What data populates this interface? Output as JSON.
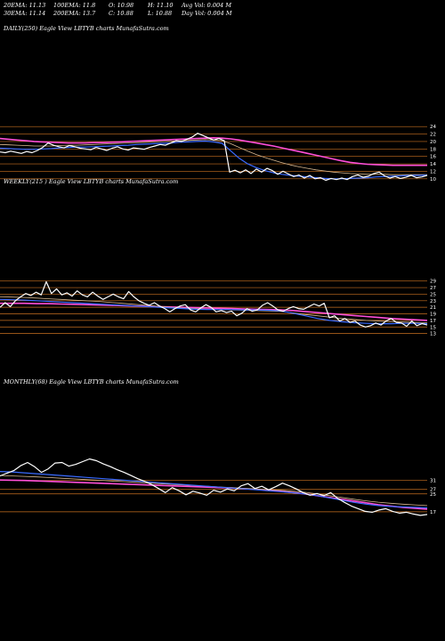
{
  "header": {
    "ema20": "20EMA: 11.13",
    "ema100": "100EMA: 11.8",
    "open": "O: 10.98",
    "high": "H: 11.10",
    "avg_vol": "Avg Vol: 0.004 M",
    "ema30": "30EMA: 11.14",
    "ema200": "200EMA: 13.7",
    "close": "C: 10.88",
    "low": "L: 10.88",
    "day_vol": "Day Vol: 0.004 M"
  },
  "panels": {
    "daily_title": "DAILY(250) Eagle View LBTYB charts MunafaSutra.com",
    "weekly_title": "WEEKLY(215                    ) Eagle View LBTYB charts MunafaSutra.com",
    "monthly_title": "MONTHLY(68) Eagle View LBTYB charts MunafaSutra.com"
  },
  "colors": {
    "price": "#ffffff",
    "ema_fast": "#3a6bff",
    "ema_slow": "#ff4fd8",
    "ema_mid": "#d8b890",
    "grid": "#c87020",
    "background": "#000000"
  },
  "chart_data": [
    {
      "type": "line",
      "title": "DAILY(250) Eagle View LBTYB charts MunafaSutra.com",
      "ylim": [
        9,
        25
      ],
      "ticks": [
        24,
        22,
        20,
        18,
        16,
        14,
        12,
        10
      ],
      "series": [
        {
          "role": "price",
          "values": [
            17.2,
            17.0,
            17.4,
            17.1,
            16.8,
            17.3,
            17.0,
            17.6,
            18.4,
            19.6,
            19.0,
            18.6,
            18.3,
            18.9,
            18.6,
            18.2,
            18.0,
            17.8,
            18.4,
            18.0,
            17.6,
            18.2,
            18.6,
            18.0,
            17.7,
            18.3,
            18.1,
            17.9,
            18.4,
            18.8,
            19.2,
            19.0,
            19.6,
            20.2,
            20.0,
            20.6,
            21.2,
            22.2,
            21.6,
            21.0,
            20.4,
            20.8,
            20.2,
            11.8,
            12.3,
            11.6,
            12.4,
            11.4,
            12.6,
            11.8,
            12.8,
            12.2,
            11.2,
            12.0,
            11.3,
            10.6,
            11.0,
            10.2,
            10.9,
            10.0,
            10.3,
            9.6,
            10.1,
            9.8,
            10.2,
            9.8,
            10.6,
            11.0,
            10.4,
            10.7,
            11.4,
            11.8,
            10.8,
            10.2,
            10.6,
            10.1,
            10.4,
            10.9,
            10.3,
            10.5,
            10.9
          ]
        },
        {
          "role": "ema_fast",
          "values": [
            18.2,
            18.1,
            18.0,
            17.9,
            17.9,
            18.0,
            18.1,
            18.3,
            18.4,
            18.5,
            18.5,
            18.6,
            18.7,
            18.8,
            18.9,
            19.0,
            19.2,
            19.3,
            19.4,
            19.5,
            19.6,
            19.8,
            19.9,
            20.0,
            20.1,
            19.9,
            19.5,
            17.5,
            15.5,
            14.0,
            13.0,
            12.2,
            11.6,
            11.2,
            10.9,
            10.7,
            10.5,
            10.3,
            10.1,
            10.0,
            10.0,
            10.1,
            10.2,
            10.3,
            10.5,
            10.6,
            10.7,
            10.8,
            10.9,
            10.9,
            11.0
          ]
        },
        {
          "role": "ema_mid",
          "values": [
            19.2,
            19.1,
            19.0,
            18.9,
            18.8,
            18.8,
            18.8,
            18.9,
            19.0,
            19.0,
            19.1,
            19.2,
            19.3,
            19.4,
            19.5,
            19.6,
            19.7,
            19.8,
            19.9,
            20.0,
            20.1,
            20.2,
            20.3,
            20.4,
            20.5,
            20.4,
            20.2,
            19.4,
            18.4,
            17.4,
            16.5,
            15.7,
            15.0,
            14.3,
            13.7,
            13.2,
            12.8,
            12.4,
            12.1,
            11.8,
            11.6,
            11.4,
            11.3,
            11.2,
            11.2,
            11.2,
            11.1,
            11.1,
            11.1,
            11.1,
            11.1
          ]
        },
        {
          "role": "ema_slow",
          "values": [
            20.8,
            20.6,
            20.4,
            20.2,
            20.0,
            19.9,
            19.8,
            19.7,
            19.6,
            19.6,
            19.6,
            19.7,
            19.7,
            19.8,
            19.9,
            20.0,
            20.1,
            20.2,
            20.3,
            20.4,
            20.5,
            20.6,
            20.7,
            20.8,
            20.9,
            21.0,
            20.9,
            20.7,
            20.4,
            20.0,
            19.6,
            19.2,
            18.8,
            18.3,
            17.8,
            17.3,
            16.8,
            16.3,
            15.8,
            15.3,
            14.8,
            14.4,
            14.1,
            13.9,
            13.8,
            13.7,
            13.6,
            13.6,
            13.6,
            13.6,
            13.6
          ]
        }
      ]
    },
    {
      "type": "line",
      "title": "WEEKLY(215) Eagle View LBTYB charts MunafaSutra.com",
      "ylim": [
        11,
        30
      ],
      "ticks": [
        29,
        27,
        25,
        23,
        21,
        19,
        17,
        15,
        13
      ],
      "series": [
        {
          "role": "price",
          "values": [
            21.0,
            22.4,
            21.2,
            23.0,
            24.2,
            25.2,
            24.6,
            25.6,
            24.8,
            28.8,
            25.2,
            26.6,
            24.8,
            25.4,
            24.4,
            26.0,
            24.8,
            24.2,
            25.6,
            24.4,
            23.4,
            24.2,
            25.0,
            24.2,
            23.6,
            25.8,
            24.2,
            23.0,
            22.2,
            21.6,
            22.4,
            21.4,
            20.6,
            19.6,
            20.6,
            21.4,
            21.8,
            20.2,
            19.6,
            20.8,
            21.8,
            21.0,
            19.6,
            20.0,
            19.4,
            19.8,
            18.4,
            19.2,
            20.6,
            19.8,
            20.2,
            21.6,
            22.4,
            21.4,
            20.2,
            19.8,
            20.6,
            21.2,
            20.6,
            20.4,
            21.2,
            22.0,
            21.4,
            22.2,
            17.8,
            18.4,
            16.8,
            17.6,
            16.4,
            16.8,
            15.6,
            15.0,
            15.4,
            16.2,
            15.6,
            16.8,
            17.6,
            16.4,
            16.2,
            15.2,
            16.8,
            15.4,
            16.0,
            15.6
          ]
        },
        {
          "role": "ema_fast",
          "values": [
            23.4,
            23.3,
            23.2,
            23.0,
            22.8,
            22.6,
            22.4,
            22.2,
            22.0,
            21.8,
            21.6,
            21.4,
            21.2,
            21.0,
            20.8,
            20.6,
            20.4,
            20.3,
            20.3,
            20.3,
            20.2,
            20.2,
            20.1,
            19.9,
            19.2,
            18.4,
            17.6,
            17.0,
            16.6,
            16.3,
            16.1,
            16.0,
            16.0,
            16.1,
            16.1,
            16.0
          ]
        },
        {
          "role": "ema_mid",
          "values": [
            24.2,
            24.1,
            24.0,
            23.8,
            23.6,
            23.4,
            23.2,
            23.0,
            22.8,
            22.5,
            22.2,
            21.9,
            21.6,
            21.3,
            21.0,
            20.8,
            20.6,
            20.4,
            20.3,
            20.2,
            20.1,
            20.0,
            19.9,
            19.7,
            19.3,
            18.8,
            18.4,
            18.0,
            17.6,
            17.3,
            17.0,
            16.8,
            16.6,
            16.5,
            16.4,
            16.3
          ]
        },
        {
          "role": "ema_slow",
          "values": [
            22.2,
            22.2,
            22.2,
            22.1,
            22.1,
            22.0,
            21.9,
            21.8,
            21.7,
            21.6,
            21.5,
            21.4,
            21.3,
            21.2,
            21.1,
            21.0,
            20.9,
            20.8,
            20.7,
            20.6,
            20.5,
            20.4,
            20.3,
            20.2,
            20.0,
            19.7,
            19.4,
            19.1,
            18.8,
            18.5,
            18.2,
            17.9,
            17.6,
            17.4,
            17.2,
            17.0
          ]
        }
      ]
    },
    {
      "type": "line",
      "title": "MONTHLY(68) Eagle View LBTYB charts MunafaSutra.com",
      "ylim": [
        11,
        42
      ],
      "ticks": [
        31,
        27,
        25,
        17
      ],
      "series": [
        {
          "role": "price",
          "values": [
            33.0,
            34.2,
            35.4,
            37.6,
            39.0,
            37.2,
            34.6,
            36.2,
            38.8,
            39.0,
            37.4,
            38.2,
            39.4,
            40.6,
            39.8,
            38.4,
            37.2,
            35.8,
            34.6,
            33.2,
            31.8,
            30.6,
            29.2,
            27.4,
            25.6,
            27.8,
            26.4,
            24.6,
            26.2,
            25.4,
            24.4,
            26.6,
            25.8,
            27.2,
            26.4,
            28.6,
            29.6,
            27.4,
            28.4,
            26.8,
            28.2,
            29.8,
            28.6,
            27.2,
            25.6,
            24.4,
            25.2,
            24.2,
            25.6,
            23.0,
            21.2,
            19.6,
            18.4,
            17.2,
            16.8,
            17.8,
            18.4,
            17.2,
            16.4,
            16.8,
            16.0,
            15.4,
            15.8
          ]
        },
        {
          "role": "ema_fast",
          "values": [
            35.0,
            34.8,
            34.4,
            34.0,
            33.6,
            33.2,
            32.8,
            32.4,
            32.0,
            31.6,
            31.2,
            30.8,
            30.4,
            30.0,
            29.6,
            29.2,
            28.8,
            28.4,
            28.0,
            27.6,
            27.2,
            26.8,
            26.4,
            26.0,
            25.5,
            25.0,
            24.2,
            23.2,
            22.2,
            21.2,
            20.4,
            19.8,
            19.4,
            19.2,
            19.0,
            18.8
          ]
        },
        {
          "role": "ema_mid",
          "values": [
            33.2,
            33.0,
            32.8,
            32.6,
            32.3,
            32.0,
            31.7,
            31.4,
            31.1,
            30.8,
            30.5,
            30.2,
            29.9,
            29.6,
            29.3,
            29.0,
            28.7,
            28.4,
            28.1,
            27.8,
            27.5,
            27.2,
            26.9,
            26.6,
            26.2,
            25.7,
            25.0,
            24.2,
            23.4,
            22.6,
            21.9,
            21.3,
            20.8,
            20.4,
            20.1,
            19.8
          ]
        },
        {
          "role": "ema_slow",
          "values": [
            31.2,
            31.1,
            31.0,
            30.8,
            30.6,
            30.4,
            30.2,
            30.0,
            29.8,
            29.6,
            29.4,
            29.2,
            29.0,
            28.8,
            28.6,
            28.4,
            28.2,
            28.0,
            27.8,
            27.6,
            27.3,
            27.0,
            26.6,
            26.2,
            25.6,
            25.0,
            24.2,
            23.4,
            22.6,
            21.8,
            21.0,
            20.2,
            19.6,
            19.0,
            18.6,
            18.2
          ]
        }
      ]
    }
  ]
}
